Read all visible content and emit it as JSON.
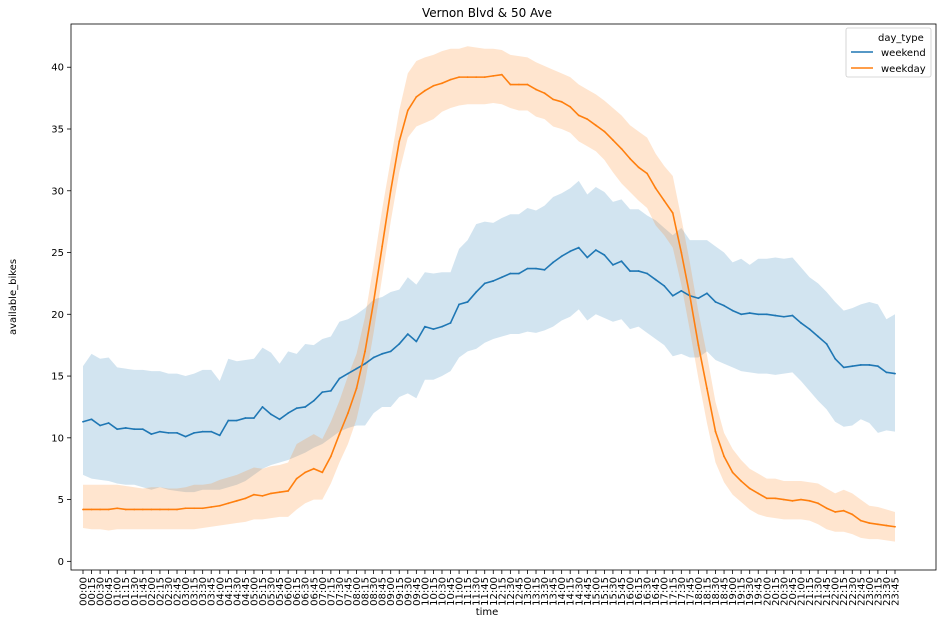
{
  "chart_data": {
    "type": "line",
    "title": "Vernon Blvd & 50 Ave",
    "xlabel": "time",
    "ylabel": "available_bikes",
    "ylim": [
      -0.7,
      43.5
    ],
    "yticks": [
      0,
      5,
      10,
      15,
      20,
      25,
      30,
      35,
      40
    ],
    "grid": false,
    "legend": {
      "title": "day_type",
      "placement": "top-right"
    },
    "categories": [
      "00:00",
      "00:15",
      "00:30",
      "00:45",
      "01:00",
      "01:15",
      "01:30",
      "01:45",
      "02:00",
      "02:15",
      "02:30",
      "02:45",
      "03:00",
      "03:15",
      "03:30",
      "03:45",
      "04:00",
      "04:15",
      "04:30",
      "04:45",
      "05:00",
      "05:15",
      "05:30",
      "05:45",
      "06:00",
      "06:15",
      "06:30",
      "06:45",
      "07:00",
      "07:15",
      "07:30",
      "07:45",
      "08:00",
      "08:15",
      "08:30",
      "08:45",
      "09:00",
      "09:15",
      "09:30",
      "09:45",
      "10:00",
      "10:15",
      "10:30",
      "10:45",
      "11:00",
      "11:15",
      "11:30",
      "11:45",
      "12:00",
      "12:15",
      "12:30",
      "12:45",
      "13:00",
      "13:15",
      "13:30",
      "13:45",
      "14:00",
      "14:15",
      "14:30",
      "14:45",
      "15:00",
      "15:15",
      "15:30",
      "15:45",
      "16:00",
      "16:15",
      "16:30",
      "16:45",
      "17:00",
      "17:15",
      "17:30",
      "17:45",
      "18:00",
      "18:15",
      "18:30",
      "18:45",
      "19:00",
      "19:15",
      "19:30",
      "19:45",
      "20:00",
      "20:15",
      "20:30",
      "20:45",
      "21:00",
      "21:15",
      "21:30",
      "21:45",
      "22:00",
      "22:15",
      "22:30",
      "22:45",
      "23:00",
      "23:15",
      "23:30",
      "23:45"
    ],
    "series": [
      {
        "name": "weekend",
        "color": "#1f77b4",
        "band_color": "#1f77b4",
        "values": [
          11.3,
          11.5,
          11.0,
          11.2,
          10.7,
          10.8,
          10.7,
          10.7,
          10.3,
          10.5,
          10.4,
          10.4,
          10.1,
          10.4,
          10.5,
          10.5,
          10.2,
          11.4,
          11.4,
          11.6,
          11.6,
          12.5,
          11.9,
          11.5,
          12.0,
          12.4,
          12.5,
          13.0,
          13.7,
          13.8,
          14.8,
          15.2,
          15.6,
          16.0,
          16.5,
          16.8,
          17.0,
          17.6,
          18.4,
          17.8,
          19.0,
          18.8,
          19.0,
          19.3,
          20.8,
          21.0,
          21.8,
          22.5,
          22.7,
          23.0,
          23.3,
          23.3,
          23.7,
          23.7,
          23.6,
          24.2,
          24.7,
          25.1,
          25.4,
          24.6,
          25.2,
          24.8,
          24.0,
          24.3,
          23.5,
          23.5,
          23.3,
          22.8,
          22.3,
          21.5,
          21.9,
          21.5,
          21.3,
          21.7,
          21.0,
          20.7,
          20.3,
          20.0,
          20.1,
          20.0,
          20.0,
          19.9,
          19.8,
          19.9,
          19.3,
          18.8,
          18.2,
          17.6,
          16.4,
          15.7,
          15.8,
          15.9,
          15.9,
          15.8,
          15.3,
          15.2
        ],
        "lower": [
          7.0,
          6.7,
          6.6,
          6.5,
          6.3,
          6.2,
          6.2,
          6.0,
          5.8,
          6.0,
          5.8,
          5.7,
          5.6,
          5.6,
          5.8,
          5.8,
          5.8,
          6.0,
          6.2,
          6.5,
          7.0,
          7.5,
          7.8,
          8.0,
          8.2,
          8.5,
          8.8,
          9.2,
          9.5,
          10.0,
          10.5,
          10.8,
          11.0,
          11.0,
          12.0,
          12.5,
          12.5,
          13.3,
          13.6,
          13.2,
          14.7,
          14.7,
          15.0,
          15.4,
          16.5,
          17.0,
          17.2,
          17.7,
          18.0,
          18.2,
          18.4,
          18.4,
          18.6,
          18.5,
          18.7,
          19.0,
          19.5,
          19.8,
          20.4,
          19.5,
          20.0,
          19.7,
          19.4,
          19.6,
          18.8,
          19.0,
          18.5,
          18.0,
          17.5,
          16.6,
          16.8,
          16.5,
          16.5,
          17.0,
          16.3,
          16.0,
          15.7,
          15.4,
          15.3,
          15.2,
          15.2,
          15.1,
          15.2,
          15.3,
          14.6,
          13.8,
          13.0,
          12.3,
          11.3,
          10.9,
          11.0,
          11.5,
          11.2,
          10.4,
          10.6,
          10.5
        ],
        "upper": [
          15.8,
          16.8,
          16.4,
          16.5,
          15.7,
          15.6,
          15.5,
          15.5,
          15.4,
          15.4,
          15.2,
          15.2,
          15.0,
          15.2,
          15.5,
          15.5,
          14.6,
          16.4,
          16.2,
          16.3,
          16.4,
          17.3,
          16.9,
          16.0,
          17.0,
          16.8,
          17.6,
          17.5,
          18.0,
          18.2,
          19.4,
          19.6,
          20.0,
          20.5,
          21.2,
          21.4,
          21.8,
          22.0,
          23.0,
          22.4,
          23.4,
          23.3,
          23.4,
          23.4,
          25.3,
          26.0,
          27.3,
          27.5,
          27.4,
          27.8,
          28.1,
          28.1,
          28.6,
          28.4,
          28.8,
          29.5,
          29.8,
          30.2,
          30.8,
          29.7,
          30.3,
          29.9,
          29.1,
          29.3,
          28.5,
          28.5,
          28.0,
          27.6,
          27.0,
          26.4,
          27.0,
          26.0,
          26.0,
          26.0,
          25.5,
          25.0,
          24.2,
          24.5,
          24.0,
          24.5,
          24.5,
          24.6,
          24.5,
          24.6,
          23.8,
          23.0,
          22.5,
          21.8,
          21.0,
          20.3,
          20.5,
          20.8,
          21.0,
          20.8,
          19.6,
          20.0
        ]
      },
      {
        "name": "weekday",
        "color": "#ff7f0e",
        "band_color": "#ff7f0e",
        "values": [
          4.2,
          4.2,
          4.2,
          4.2,
          4.3,
          4.2,
          4.2,
          4.2,
          4.2,
          4.2,
          4.2,
          4.2,
          4.3,
          4.3,
          4.3,
          4.4,
          4.5,
          4.7,
          4.9,
          5.1,
          5.4,
          5.3,
          5.5,
          5.6,
          5.7,
          6.7,
          7.2,
          7.5,
          7.2,
          8.5,
          10.3,
          12.0,
          14.0,
          17.0,
          21.0,
          25.5,
          30.0,
          34.0,
          36.5,
          37.6,
          38.1,
          38.5,
          38.7,
          39.0,
          39.2,
          39.2,
          39.2,
          39.2,
          39.3,
          39.4,
          38.6,
          38.6,
          38.6,
          38.2,
          37.9,
          37.4,
          37.2,
          36.8,
          36.1,
          35.8,
          35.3,
          34.8,
          34.1,
          33.4,
          32.6,
          31.9,
          31.4,
          30.2,
          29.2,
          28.2,
          25.0,
          21.5,
          17.5,
          14.0,
          10.5,
          8.5,
          7.2,
          6.5,
          5.9,
          5.5,
          5.1,
          5.1,
          5.0,
          4.9,
          5.0,
          4.9,
          4.7,
          4.3,
          4.0,
          4.1,
          3.8,
          3.3,
          3.1,
          3.0,
          2.9,
          2.8
        ],
        "lower": [
          2.7,
          2.6,
          2.6,
          2.5,
          2.6,
          2.6,
          2.6,
          2.6,
          2.6,
          2.6,
          2.6,
          2.6,
          2.6,
          2.6,
          2.7,
          2.8,
          2.9,
          3.0,
          3.1,
          3.2,
          3.4,
          3.4,
          3.5,
          3.6,
          3.6,
          4.2,
          4.7,
          5.0,
          5.0,
          6.3,
          8.0,
          9.5,
          11.5,
          14.5,
          18.5,
          23.0,
          27.5,
          31.5,
          34.3,
          35.2,
          35.5,
          35.8,
          36.4,
          36.7,
          36.9,
          37.0,
          37.0,
          37.0,
          37.1,
          37.0,
          36.7,
          36.5,
          36.5,
          36.0,
          35.8,
          35.2,
          35.0,
          34.7,
          34.0,
          33.6,
          33.2,
          32.5,
          31.5,
          30.6,
          29.9,
          29.2,
          28.6,
          27.2,
          26.4,
          25.4,
          22.4,
          18.7,
          14.8,
          11.2,
          8.0,
          6.4,
          5.4,
          4.8,
          4.2,
          3.8,
          3.6,
          3.5,
          3.4,
          3.4,
          3.4,
          3.3,
          3.0,
          2.6,
          2.4,
          2.4,
          2.2,
          1.9,
          1.8,
          1.8,
          1.7,
          1.6
        ],
        "upper": [
          6.2,
          6.2,
          6.2,
          6.2,
          6.2,
          6.1,
          6.0,
          5.9,
          6.0,
          6.0,
          5.9,
          5.9,
          6.0,
          6.2,
          6.2,
          6.3,
          6.6,
          6.8,
          7.0,
          7.3,
          7.6,
          7.5,
          7.7,
          7.8,
          8.0,
          9.5,
          9.9,
          10.3,
          9.9,
          11.3,
          13.0,
          15.0,
          16.8,
          19.8,
          24.0,
          28.5,
          32.5,
          36.5,
          39.5,
          40.5,
          40.8,
          41.0,
          41.3,
          41.5,
          41.5,
          41.7,
          41.6,
          41.5,
          41.5,
          41.4,
          41.0,
          40.9,
          40.8,
          40.4,
          40.1,
          39.8,
          39.5,
          39.2,
          38.6,
          38.2,
          37.8,
          37.3,
          36.7,
          36.1,
          35.3,
          34.8,
          34.3,
          33.0,
          32.0,
          31.2,
          27.8,
          24.2,
          20.2,
          16.7,
          12.9,
          10.4,
          9.1,
          8.2,
          7.5,
          7.1,
          6.7,
          6.7,
          6.5,
          6.5,
          6.5,
          6.4,
          6.3,
          5.9,
          5.5,
          5.8,
          5.5,
          5.0,
          4.5,
          4.4,
          4.2,
          4.0
        ]
      }
    ]
  }
}
